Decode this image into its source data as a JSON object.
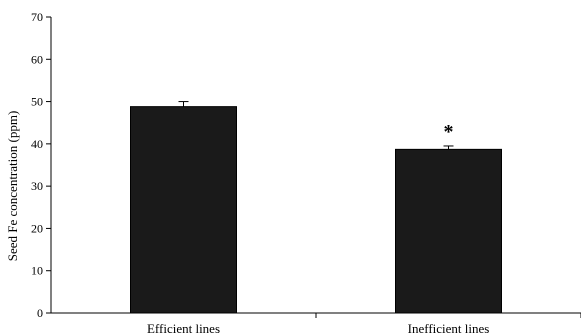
{
  "chart_data": {
    "type": "bar",
    "categories": [
      "Efficient lines",
      "Inefficient lines"
    ],
    "values": [
      48.8,
      38.7
    ],
    "errors": [
      1.2,
      0.8
    ],
    "annotations": [
      "",
      "*"
    ],
    "title": "",
    "xlabel": "",
    "ylabel": "Seed Fe concentration (ppm)",
    "ylim": [
      0,
      70
    ],
    "yticks": [
      "0",
      "10",
      "20",
      "30",
      "40",
      "50",
      "60",
      "70"
    ],
    "grid": false,
    "legend": "none",
    "bar_color": "#1a1a1a"
  }
}
